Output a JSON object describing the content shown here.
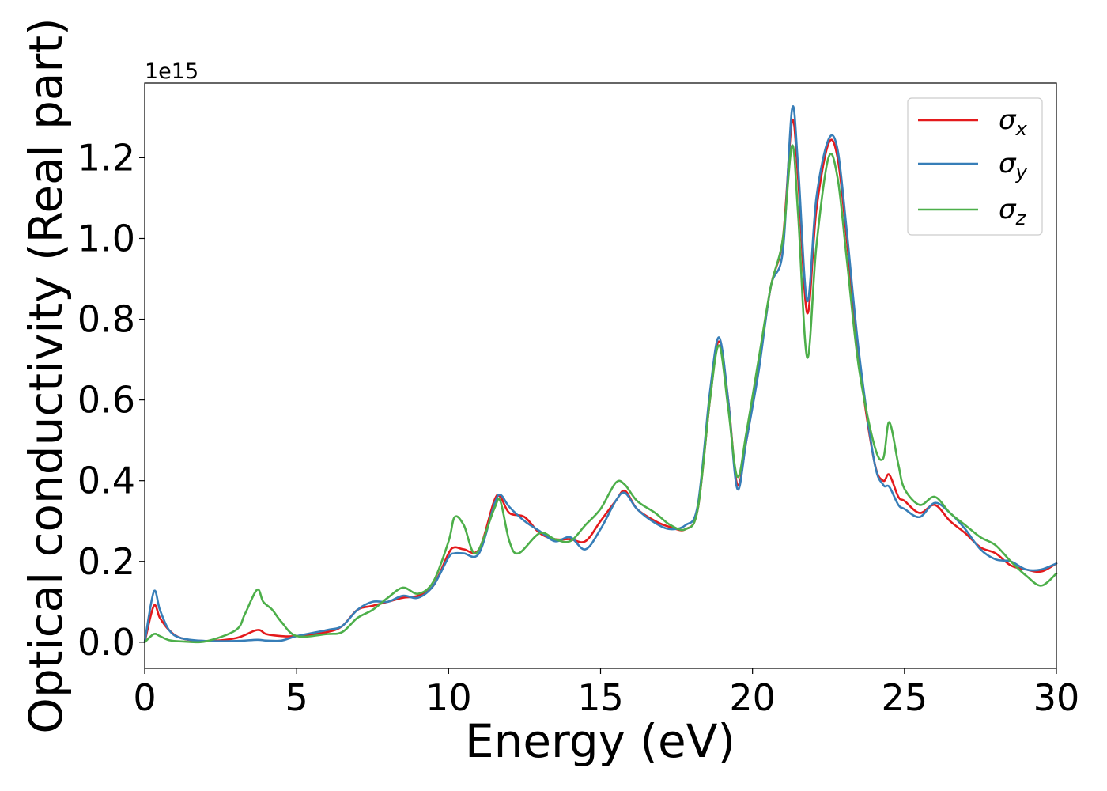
{
  "chart_data": {
    "type": "line",
    "xlabel": "Energy (eV)",
    "ylabel": "Optical conductivity (Real part)",
    "y_offset_text": "1e15",
    "xlim": [
      0,
      30
    ],
    "ylim": [
      -0.065,
      1.385
    ],
    "y_scale_factor": 1000000000000000.0,
    "x_ticks": [
      0,
      5,
      10,
      15,
      20,
      25,
      30
    ],
    "x_tick_labels": [
      "0",
      "5",
      "10",
      "15",
      "20",
      "25",
      "30"
    ],
    "y_ticks": [
      0.0,
      0.2,
      0.4,
      0.6,
      0.8,
      1.0,
      1.2
    ],
    "y_tick_labels": [
      "0.0",
      "0.2",
      "0.4",
      "0.6",
      "0.8",
      "1.0",
      "1.2"
    ],
    "grid": false,
    "legend_position": "top-right",
    "series": [
      {
        "name": "σx",
        "symbol": "σ",
        "subscript": "x",
        "color": "#e41a1c",
        "x": [
          0,
          0.3,
          0.5,
          0.8,
          1.2,
          2,
          3,
          3.7,
          4,
          4.5,
          5,
          6,
          6.5,
          7,
          7.5,
          8,
          8.5,
          9,
          9.5,
          10,
          10.2,
          10.5,
          11,
          11.5,
          11.7,
          12,
          12.5,
          13,
          13.5,
          14,
          14.5,
          15,
          15.5,
          15.8,
          16.2,
          16.8,
          17.3,
          17.8,
          18.2,
          18.6,
          18.9,
          19.2,
          19.5,
          19.8,
          20.2,
          20.6,
          21,
          21.3,
          21.5,
          21.8,
          22.1,
          22.5,
          22.8,
          23.1,
          23.5,
          24,
          24.3,
          24.5,
          24.8,
          25,
          25.5,
          26,
          26.5,
          27,
          27.5,
          28,
          28.5,
          29,
          29.5,
          30
        ],
        "y": [
          0,
          0.09,
          0.06,
          0.03,
          0.01,
          0.003,
          0.01,
          0.03,
          0.02,
          0.015,
          0.015,
          0.025,
          0.04,
          0.08,
          0.09,
          0.1,
          0.11,
          0.115,
          0.14,
          0.22,
          0.235,
          0.23,
          0.23,
          0.35,
          0.36,
          0.32,
          0.31,
          0.27,
          0.255,
          0.255,
          0.25,
          0.3,
          0.35,
          0.375,
          0.33,
          0.3,
          0.285,
          0.28,
          0.33,
          0.6,
          0.745,
          0.6,
          0.39,
          0.5,
          0.68,
          0.88,
          1.0,
          1.29,
          1.15,
          0.815,
          1.07,
          1.235,
          1.2,
          1.0,
          0.7,
          0.45,
          0.4,
          0.415,
          0.36,
          0.35,
          0.32,
          0.34,
          0.3,
          0.27,
          0.235,
          0.22,
          0.19,
          0.18,
          0.175,
          0.195
        ]
      },
      {
        "name": "σy",
        "symbol": "σ",
        "subscript": "y",
        "color": "#377eb8",
        "x": [
          0,
          0.3,
          0.5,
          0.8,
          1.2,
          2,
          3,
          3.7,
          4,
          4.5,
          5,
          6,
          6.5,
          7,
          7.5,
          8,
          8.5,
          9,
          9.5,
          10,
          10.2,
          10.5,
          11,
          11.5,
          11.7,
          12,
          12.5,
          13,
          13.5,
          14,
          14.5,
          15,
          15.5,
          15.8,
          16.2,
          16.8,
          17.3,
          17.8,
          18.2,
          18.6,
          18.9,
          19.2,
          19.5,
          19.8,
          20.2,
          20.6,
          21,
          21.3,
          21.5,
          21.8,
          22.1,
          22.5,
          22.8,
          23.1,
          23.5,
          24,
          24.3,
          24.5,
          24.8,
          25,
          25.5,
          26,
          26.5,
          27,
          27.5,
          28,
          28.5,
          29,
          29.5,
          30
        ],
        "y": [
          0,
          0.125,
          0.08,
          0.03,
          0.01,
          0.003,
          0.003,
          0.006,
          0.004,
          0.004,
          0.015,
          0.03,
          0.04,
          0.08,
          0.1,
          0.1,
          0.115,
          0.11,
          0.14,
          0.21,
          0.22,
          0.22,
          0.22,
          0.34,
          0.365,
          0.335,
          0.3,
          0.275,
          0.25,
          0.26,
          0.23,
          0.28,
          0.35,
          0.37,
          0.33,
          0.295,
          0.28,
          0.29,
          0.34,
          0.62,
          0.755,
          0.6,
          0.38,
          0.5,
          0.67,
          0.88,
          0.97,
          1.32,
          1.18,
          0.845,
          1.1,
          1.245,
          1.22,
          1.02,
          0.72,
          0.45,
          0.39,
          0.385,
          0.34,
          0.33,
          0.31,
          0.345,
          0.32,
          0.28,
          0.23,
          0.205,
          0.2,
          0.18,
          0.18,
          0.195
        ]
      },
      {
        "name": "σz",
        "symbol": "σ",
        "subscript": "z",
        "color": "#4daf4a",
        "x": [
          0,
          0.3,
          0.5,
          0.8,
          1.2,
          2,
          3,
          3.3,
          3.7,
          3.9,
          4.2,
          4.5,
          5,
          6,
          6.5,
          7,
          7.5,
          8,
          8.5,
          9,
          9.5,
          10,
          10.2,
          10.5,
          10.9,
          11.5,
          11.7,
          12,
          12.3,
          13,
          13.5,
          14,
          14.5,
          15,
          15.5,
          15.8,
          16.2,
          16.8,
          17.3,
          17.8,
          18.2,
          18.6,
          18.9,
          19.2,
          19.5,
          19.8,
          20.2,
          20.6,
          21,
          21.3,
          21.5,
          21.8,
          22.1,
          22.5,
          22.8,
          23.1,
          23.5,
          24,
          24.3,
          24.5,
          24.8,
          25,
          25.5,
          26,
          26.5,
          27,
          27.5,
          28,
          28.5,
          29,
          29.5,
          30
        ],
        "y": [
          0,
          0.02,
          0.015,
          0.005,
          0.002,
          0.002,
          0.03,
          0.07,
          0.13,
          0.1,
          0.08,
          0.05,
          0.015,
          0.02,
          0.025,
          0.06,
          0.08,
          0.11,
          0.135,
          0.12,
          0.15,
          0.25,
          0.31,
          0.29,
          0.22,
          0.33,
          0.35,
          0.25,
          0.22,
          0.27,
          0.255,
          0.25,
          0.29,
          0.33,
          0.395,
          0.39,
          0.35,
          0.32,
          0.29,
          0.28,
          0.33,
          0.6,
          0.735,
          0.58,
          0.41,
          0.52,
          0.7,
          0.88,
          1.0,
          1.23,
          1.06,
          0.705,
          0.98,
          1.2,
          1.15,
          0.95,
          0.68,
          0.49,
          0.455,
          0.545,
          0.44,
          0.38,
          0.34,
          0.36,
          0.32,
          0.29,
          0.26,
          0.24,
          0.2,
          0.165,
          0.14,
          0.17
        ]
      }
    ]
  }
}
